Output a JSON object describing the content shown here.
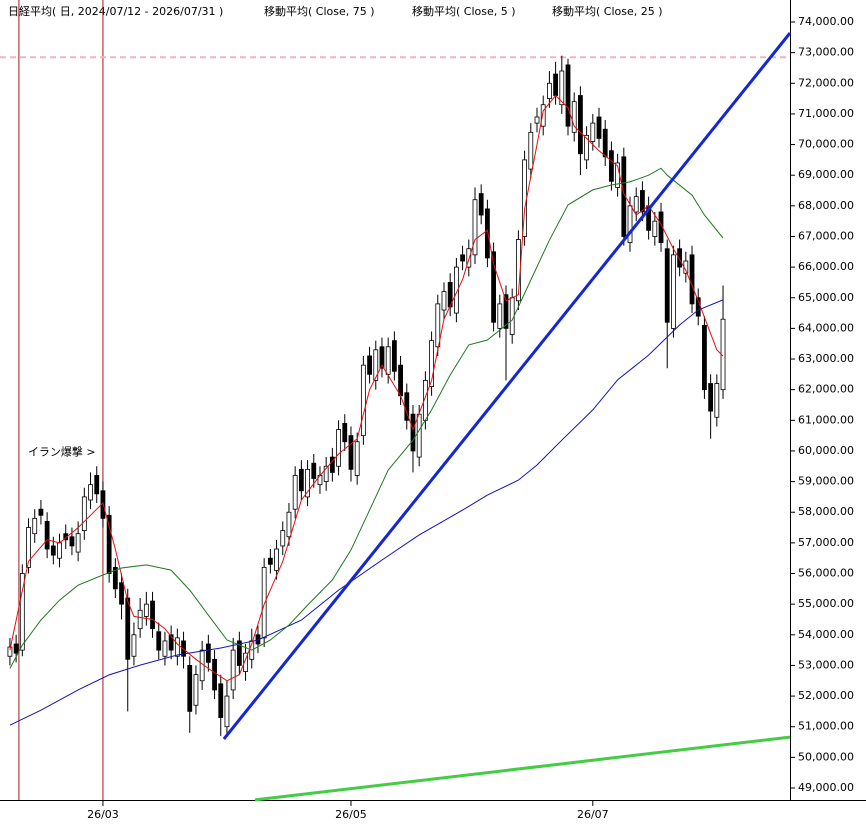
{
  "chart_data": {
    "type": "candlestick",
    "title": "日経平均( 日, 2024/07/12 - 2026/07/31 )",
    "ylim": [
      48608,
      74718
    ],
    "xlim": [
      -1.6,
      125.8
    ],
    "yticks": [
      {
        "value": 49000,
        "label": "49,000.00"
      },
      {
        "value": 50000,
        "label": "50,000.00"
      },
      {
        "value": 51000,
        "label": "51,000.00"
      },
      {
        "value": 52000,
        "label": "52,000.00"
      },
      {
        "value": 53000,
        "label": "53,000.00"
      },
      {
        "value": 54000,
        "label": "54,000.00"
      },
      {
        "value": 55000,
        "label": "55,000.00"
      },
      {
        "value": 56000,
        "label": "56,000.00"
      },
      {
        "value": 57000,
        "label": "57,000.00"
      },
      {
        "value": 58000,
        "label": "58,000.00"
      },
      {
        "value": 59000,
        "label": "59,000.00"
      },
      {
        "value": 60000,
        "label": "60,000.00"
      },
      {
        "value": 61000,
        "label": "61,000.00"
      },
      {
        "value": 62000,
        "label": "62,000.00"
      },
      {
        "value": 63000,
        "label": "63,000.00"
      },
      {
        "value": 64000,
        "label": "64,000.00"
      },
      {
        "value": 65000,
        "label": "65,000.00"
      },
      {
        "value": 66000,
        "label": "66,000.00"
      },
      {
        "value": 67000,
        "label": "67,000.00"
      },
      {
        "value": 68000,
        "label": "68,000.00"
      },
      {
        "value": 69000,
        "label": "69,000.00"
      },
      {
        "value": 70000,
        "label": "70,000.00"
      },
      {
        "value": 71000,
        "label": "71,000.00"
      },
      {
        "value": 72000,
        "label": "72,000.00"
      },
      {
        "value": 73000,
        "label": "73,000.00"
      },
      {
        "value": 74000,
        "label": "74,000.00"
      }
    ],
    "xticks": [
      {
        "value": 15,
        "label": "26/03"
      },
      {
        "value": 55,
        "label": "26/05"
      },
      {
        "value": 94,
        "label": "26/07"
      }
    ],
    "open": [
      53300,
      53700,
      53500,
      56200,
      57300,
      58100,
      57700,
      56900,
      56500,
      57300,
      57200,
      56700,
      57400,
      58400,
      59200,
      58700,
      57900,
      56200,
      55700,
      55200,
      53300,
      54200,
      54600,
      55100,
      54100,
      53300,
      54000,
      53300,
      53800,
      53000,
      51700,
      52500,
      53700,
      53200,
      52400,
      51000,
      52200,
      53800,
      52800,
      53200,
      54000,
      53900,
      56500,
      56100,
      56900,
      57200,
      58100,
      59400,
      58500,
      59600,
      58900,
      59000,
      59800,
      59500,
      60900,
      60500,
      59200,
      60500,
      63100,
      62300,
      63400,
      62500,
      63600,
      62800,
      61900,
      61200,
      59800,
      61000,
      62100,
      63400,
      64600,
      65500,
      64500,
      66400,
      66000,
      66400,
      68400,
      67900,
      66500,
      64000,
      65100,
      63800,
      64900,
      67000,
      69200,
      70700,
      70600,
      71500,
      72300,
      71300,
      72600,
      70400,
      71600,
      69500,
      70100,
      70900,
      70500,
      69800,
      68600,
      69600,
      66800,
      67800,
      68500,
      68000,
      67000,
      67800,
      66600,
      64000,
      66600,
      65800,
      66400,
      65000,
      64100,
      62200,
      61100,
      62000
    ],
    "high": [
      53900,
      54000,
      56300,
      57800,
      58100,
      58400,
      58000,
      57200,
      57300,
      57600,
      57500,
      57700,
      58800,
      59300,
      59500,
      59000,
      58200,
      56500,
      56000,
      55500,
      54400,
      55200,
      55400,
      55400,
      54400,
      54100,
      54300,
      54200,
      54100,
      53300,
      53000,
      53800,
      54000,
      53500,
      52700,
      52500,
      53900,
      54100,
      53700,
      54200,
      54300,
      56500,
      56800,
      57100,
      57700,
      58300,
      59500,
      59700,
      59700,
      59900,
      59500,
      59800,
      60100,
      61000,
      61200,
      60800,
      60600,
      63100,
      63400,
      63600,
      63700,
      63700,
      63900,
      63100,
      62200,
      61500,
      61500,
      62600,
      63900,
      65100,
      65500,
      65800,
      66300,
      66700,
      66900,
      68600,
      68700,
      68200,
      66800,
      65100,
      65400,
      65300,
      67200,
      69800,
      70700,
      71200,
      71600,
      72400,
      72700,
      72900,
      72800,
      71700,
      71900,
      70600,
      71000,
      71200,
      70800,
      70100,
      69700,
      69900,
      68300,
      68600,
      68800,
      68300,
      67800,
      68100,
      66900,
      66700,
      66900,
      66500,
      66700,
      65300,
      64400,
      62500,
      62500,
      65400
    ],
    "low": [
      53000,
      53100,
      53300,
      56000,
      57000,
      57600,
      56500,
      56300,
      56200,
      56800,
      56600,
      56400,
      57100,
      58100,
      58300,
      57500,
      55700,
      55200,
      54500,
      51500,
      53000,
      53900,
      54300,
      53900,
      53200,
      53000,
      53200,
      53000,
      52900,
      50800,
      51400,
      52200,
      52800,
      51900,
      50700,
      50700,
      51900,
      52700,
      52500,
      52900,
      53400,
      53600,
      56000,
      55800,
      56600,
      56900,
      57800,
      58400,
      58200,
      58800,
      58600,
      58700,
      59000,
      59200,
      60000,
      59000,
      58900,
      60200,
      62200,
      62000,
      62400,
      62200,
      62300,
      61500,
      60700,
      59300,
      59500,
      60700,
      61800,
      63100,
      64300,
      64400,
      64200,
      65900,
      65700,
      66100,
      67400,
      66000,
      63900,
      63700,
      62300,
      63500,
      64600,
      66700,
      68900,
      70400,
      70300,
      71200,
      71300,
      71000,
      70300,
      70100,
      69000,
      69200,
      69800,
      69900,
      69300,
      68500,
      68300,
      66700,
      66500,
      67500,
      67500,
      66900,
      66700,
      66500,
      62700,
      63700,
      65700,
      65500,
      64500,
      64100,
      61700,
      60400,
      60800,
      61700
    ],
    "close": [
      53600,
      53400,
      56000,
      57500,
      57800,
      57900,
      56800,
      56600,
      57000,
      57100,
      56900,
      57300,
      58500,
      58900,
      58600,
      57800,
      56000,
      55500,
      55000,
      53200,
      54000,
      54800,
      55000,
      54200,
      53500,
      53800,
      53500,
      53900,
      53300,
      51500,
      52700,
      53500,
      53100,
      52200,
      51300,
      52000,
      53500,
      53000,
      53400,
      53800,
      53700,
      56200,
      56300,
      56800,
      57400,
      58000,
      59200,
      58700,
      59400,
      59100,
      59200,
      59500,
      59300,
      60700,
      60300,
      59400,
      60300,
      62800,
      62500,
      63300,
      62700,
      63400,
      62600,
      61800,
      61000,
      60000,
      61200,
      62300,
      63600,
      64800,
      65200,
      64700,
      66000,
      66200,
      66600,
      68200,
      67700,
      66300,
      64200,
      64800,
      64000,
      65000,
      66900,
      69500,
      70400,
      70900,
      71300,
      72000,
      71600,
      72400,
      70600,
      71400,
      69700,
      70300,
      70700,
      70200,
      69600,
      68800,
      69400,
      67000,
      68000,
      68300,
      67800,
      67200,
      67500,
      66800,
      64200,
      66400,
      66000,
      66200,
      64800,
      64400,
      62000,
      61300,
      62200,
      64300
    ],
    "series": [
      {
        "name": "移動平均( Close, 75 )",
        "color": "#1414b4",
        "x": [
          0,
          5,
          11,
          16,
          21,
          27,
          34,
          40,
          47,
          53,
          60,
          66,
          73,
          77,
          82,
          85,
          89,
          94,
          98,
          103,
          108,
          111,
          115
        ],
        "values": [
          51050,
          51540,
          52200,
          52690,
          53010,
          53340,
          53570,
          53830,
          54480,
          55460,
          56440,
          57260,
          58070,
          58560,
          59050,
          59540,
          60350,
          61340,
          62320,
          63130,
          64110,
          64600,
          64930
        ]
      },
      {
        "name": "移動平均( Close, 5 )",
        "color": "#e01010",
        "x": [
          0,
          3,
          6,
          8,
          11,
          14,
          15,
          17,
          19,
          20,
          23,
          25,
          27,
          30,
          32,
          35,
          37,
          39,
          41,
          44,
          47,
          50,
          53,
          56,
          58,
          60,
          63,
          65,
          68,
          70,
          73,
          75,
          77,
          78,
          80,
          82,
          83,
          85,
          86,
          88,
          90,
          91,
          93,
          95,
          98,
          99,
          101,
          103,
          105,
          107,
          109,
          111,
          114,
          115
        ],
        "values": [
          53500,
          56400,
          57100,
          57000,
          57500,
          58100,
          58300,
          56800,
          55100,
          54600,
          54500,
          54200,
          53700,
          53200,
          52900,
          52500,
          52700,
          53700,
          55000,
          56400,
          58400,
          59200,
          59900,
          60400,
          62000,
          62800,
          61800,
          60700,
          62300,
          64300,
          65600,
          66900,
          67200,
          66100,
          64900,
          65100,
          67900,
          70000,
          71100,
          71600,
          71200,
          70600,
          70200,
          69800,
          69300,
          68400,
          67700,
          68000,
          67400,
          66600,
          65900,
          64900,
          63300,
          63100
        ]
      },
      {
        "name": "移動平均( Close, 25 )",
        "color": "#1f7a1f",
        "x": [
          0,
          2,
          5,
          8,
          11,
          15,
          18,
          22,
          26,
          29,
          32,
          35,
          39,
          42,
          45,
          48,
          52,
          55,
          58,
          61,
          65,
          68,
          71,
          74,
          77,
          81,
          84,
          87,
          90,
          94,
          97,
          100,
          103,
          105,
          106,
          110,
          112,
          115
        ],
        "values": [
          52900,
          53660,
          54480,
          55130,
          55620,
          55950,
          56180,
          56280,
          56110,
          55460,
          54640,
          53830,
          53500,
          53830,
          54320,
          54970,
          55790,
          56770,
          58070,
          59380,
          60350,
          61340,
          62480,
          63460,
          63620,
          64270,
          65580,
          66880,
          68030,
          68520,
          68680,
          68780,
          69000,
          69230,
          69000,
          68350,
          67700,
          66950
        ]
      }
    ],
    "trendlines": [
      {
        "color": "#1428d2",
        "x": [
          34.5,
          125.8
        ],
        "values": [
          50600,
          73640
        ]
      },
      {
        "color": "#44cc44",
        "x": [
          39.5,
          125.8
        ],
        "values": [
          48610,
          50660
        ]
      }
    ],
    "hline": {
      "value": 72850,
      "color": "#f4b0c4"
    },
    "vlines": {
      "x": [
        1.45,
        15
      ],
      "color": "#a01818"
    },
    "annotations": [
      {
        "text": "イラン爆撃 >",
        "x": 2.9,
        "value": 59950
      }
    ]
  }
}
